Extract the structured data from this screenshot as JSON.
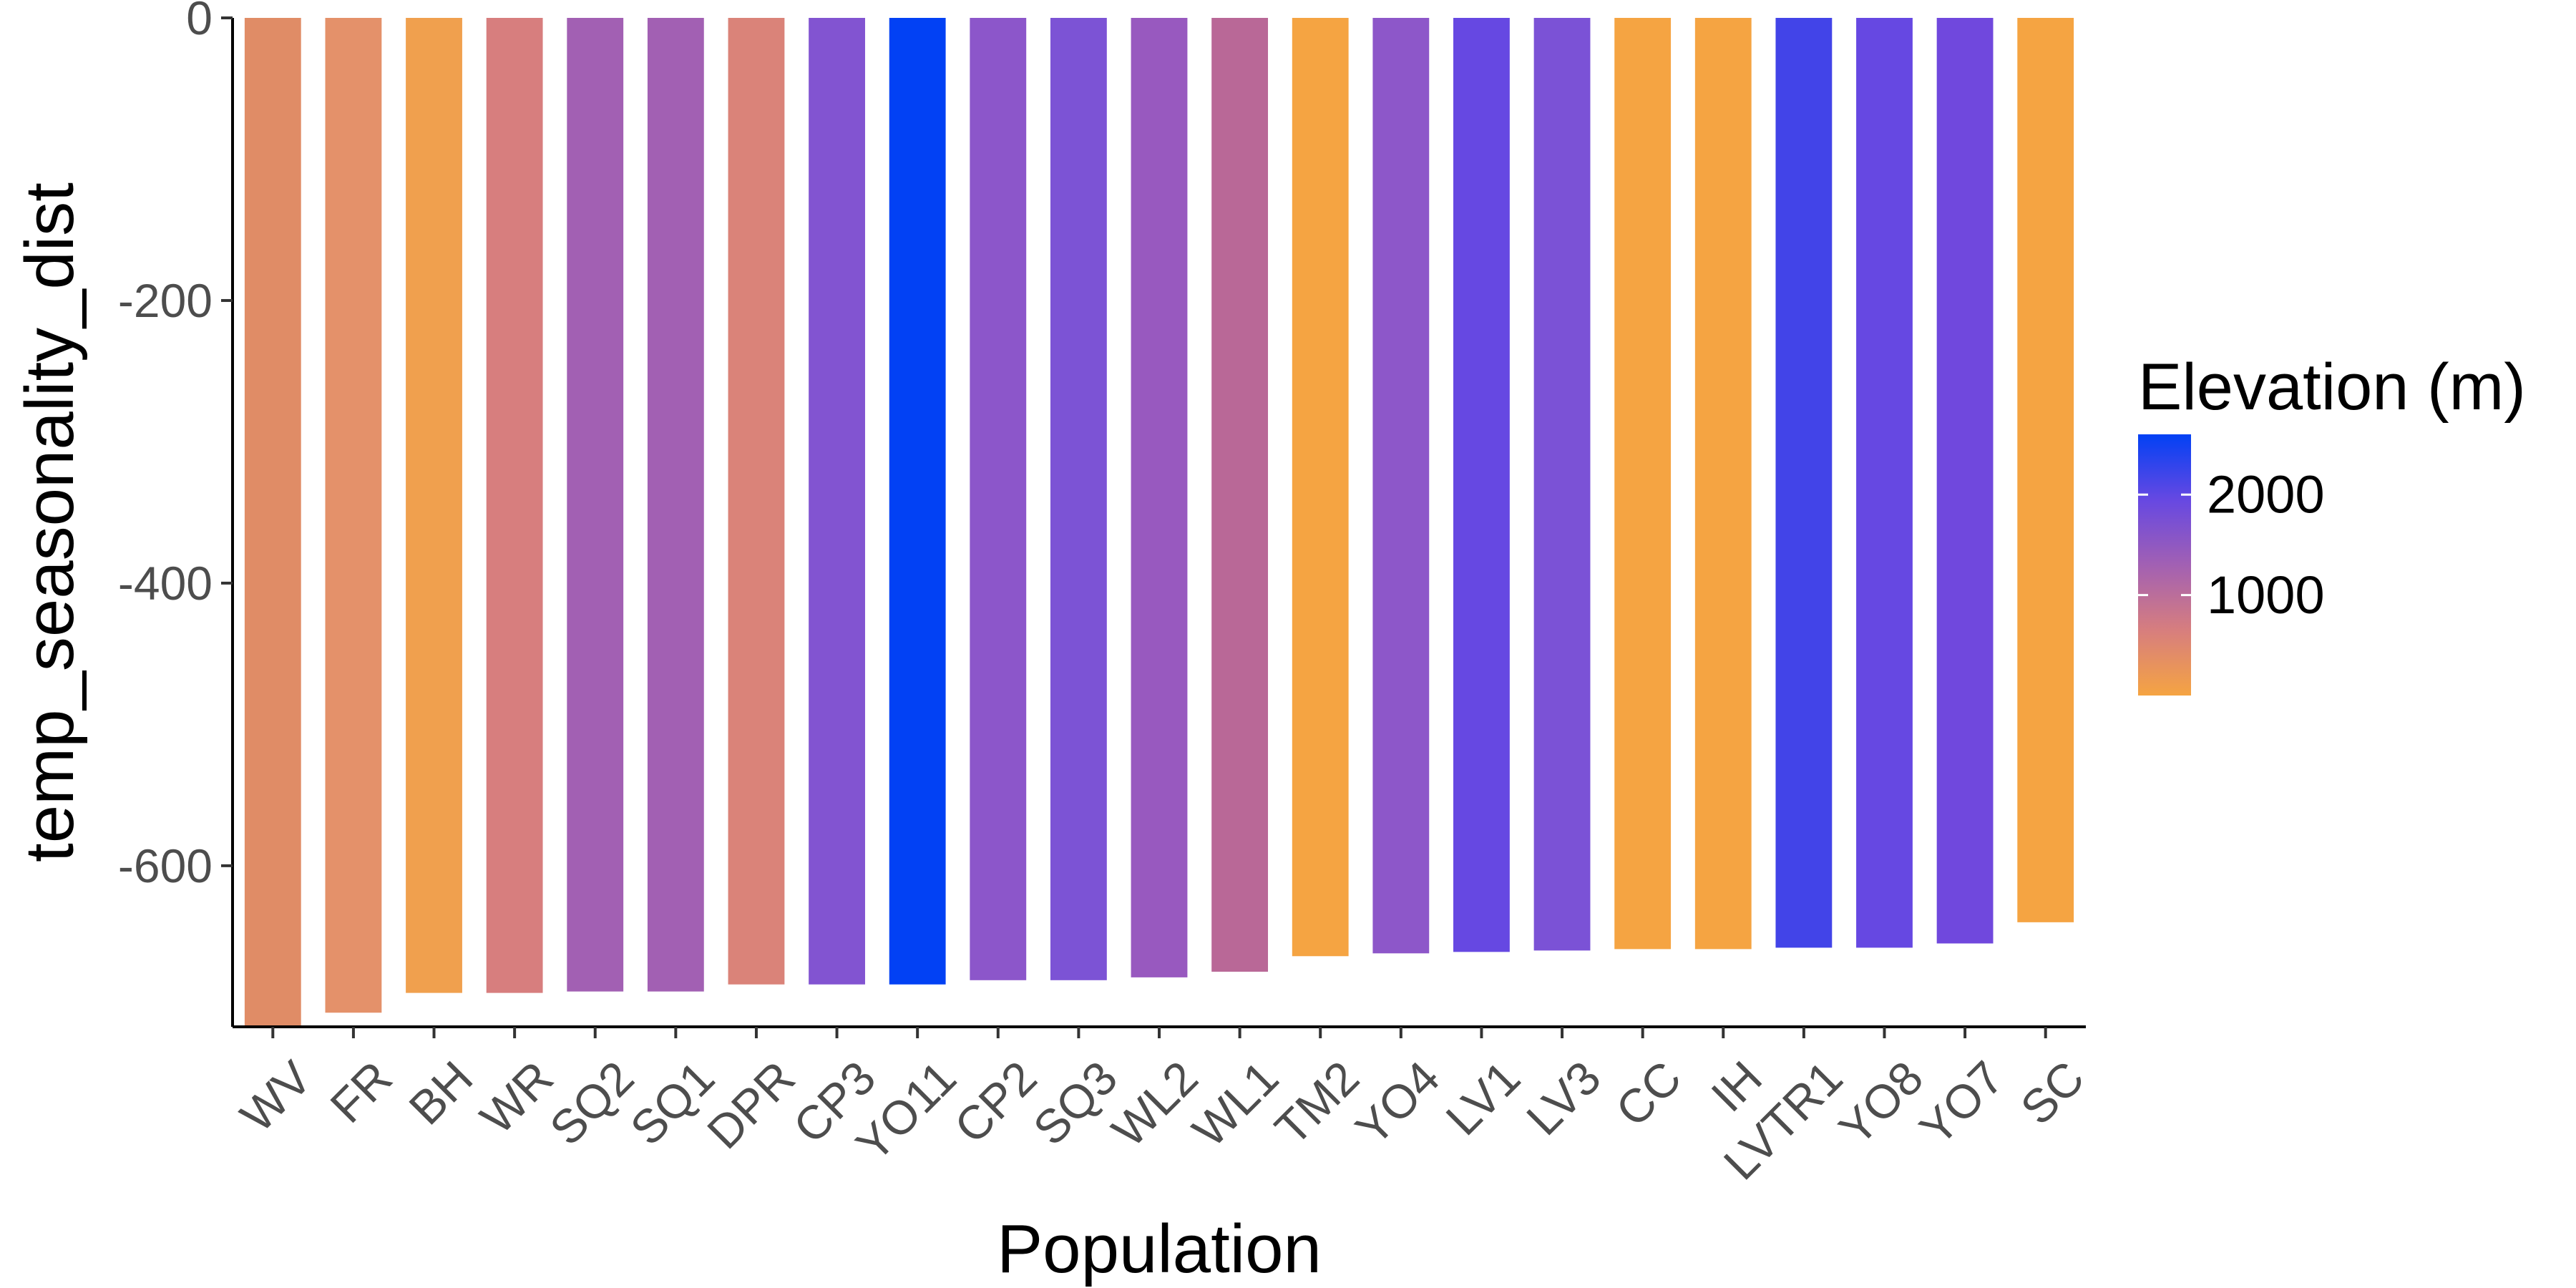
{
  "chart_data": {
    "type": "bar",
    "xlabel": "Population",
    "ylabel": "temp_seasonality_dist",
    "ylim": [
      -714,
      0
    ],
    "y_ticks": [
      0,
      -200,
      -400,
      -600
    ],
    "grid": false,
    "legend_position": "right",
    "categories": [
      "WV",
      "FR",
      "BH",
      "WR",
      "SQ2",
      "SQ1",
      "DPR",
      "CP3",
      "YO11",
      "CP2",
      "SQ3",
      "WL2",
      "WL1",
      "TM2",
      "YO4",
      "LV1",
      "LV3",
      "CC",
      "IH",
      "LVTR1",
      "YO8",
      "YO7",
      "SC"
    ],
    "values": [
      -714,
      -704,
      -690,
      -690,
      -689,
      -689,
      -684,
      -684,
      -684,
      -681,
      -681,
      -679,
      -675,
      -664,
      -662,
      -661,
      -660,
      -659,
      -659,
      -658,
      -658,
      -655,
      -640
    ],
    "elevation_m": [
      350,
      250,
      100,
      650,
      1500,
      1500,
      600,
      1950,
      2550,
      1850,
      2050,
      1800,
      1000,
      50,
      1850,
      2250,
      2050,
      50,
      50,
      2450,
      2250,
      2200,
      50
    ],
    "colors": [
      "#E08C66",
      "#E4916A",
      "#F0A04E",
      "#D77E7E",
      "#A260B3",
      "#A260B3",
      "#DA8379",
      "#8254D1",
      "#0241F4",
      "#8C56CA",
      "#7C53D5",
      "#9859BF",
      "#B96897",
      "#F5A442",
      "#8D57C9",
      "#6648E2",
      "#7B52D6",
      "#F5A442",
      "#F5A442",
      "#4244E8",
      "#6648E2",
      "#7048DD",
      "#F5A442"
    ]
  },
  "legend": {
    "title": "Elevation (m)",
    "labels": [
      "2000",
      "1000"
    ],
    "label_values": [
      2000,
      1000
    ],
    "range": [
      0,
      2600
    ],
    "gradient_colors": [
      "#F5A442",
      "#D77E7E",
      "#A260B3",
      "#6648E2",
      "#0241F4"
    ]
  }
}
